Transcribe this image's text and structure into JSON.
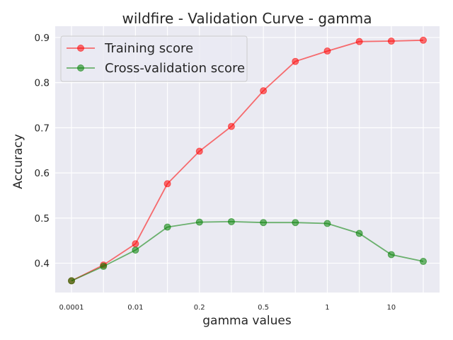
{
  "chart_data": {
    "type": "line",
    "title": "wildfire - Validation Curve - gamma",
    "xlabel": "gamma values",
    "ylabel": "Accuracy",
    "categories": [
      "0.0001",
      "",
      "0.01",
      "",
      "0.2",
      "",
      "0.5",
      "",
      "1",
      "",
      "10",
      ""
    ],
    "ylim": [
      0.335,
      0.925
    ],
    "yticks": [
      "0.4",
      "0.5",
      "0.6",
      "0.7",
      "0.8",
      "0.9"
    ],
    "grid": true,
    "legend_position": "top-left",
    "series": [
      {
        "name": "Training score",
        "color": "#ff0000",
        "values": [
          0.361,
          0.396,
          0.443,
          0.576,
          0.648,
          0.703,
          0.782,
          0.847,
          0.87,
          0.891,
          0.892,
          0.894
        ]
      },
      {
        "name": "Cross-validation score",
        "color": "#008000",
        "values": [
          0.361,
          0.393,
          0.429,
          0.48,
          0.491,
          0.492,
          0.49,
          0.49,
          0.488,
          0.466,
          0.419,
          0.404
        ]
      }
    ]
  }
}
